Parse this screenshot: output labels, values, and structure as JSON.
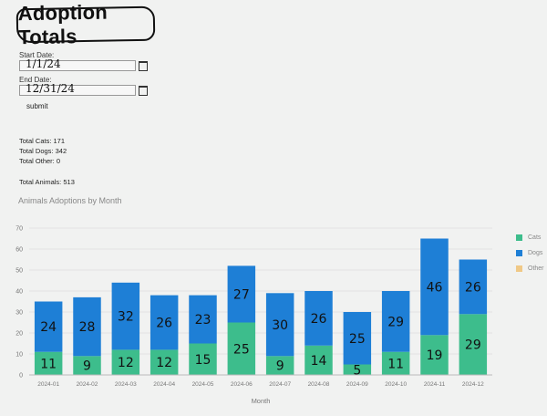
{
  "page": {
    "title": "Adoption Totals",
    "start_label": "Start Date:",
    "start_value": "1/1/24",
    "end_label": "End Date:",
    "end_value": "12/31/24",
    "submit_label": "submit"
  },
  "totals": {
    "cats": "Total Cats: 171",
    "dogs": "Total Dogs: 342",
    "other": "Total Other: 0",
    "animals": "Total Animals: 513"
  },
  "chart_data": {
    "type": "bar",
    "title": "Animals Adoptions by Month",
    "xlabel": "Month",
    "ylabel": "",
    "ylim": [
      0,
      70
    ],
    "yticks": [
      "0",
      "10",
      "20",
      "30",
      "40",
      "50",
      "60",
      "70"
    ],
    "categories": [
      "2024-01",
      "2024-02",
      "2024-03",
      "2024-04",
      "2024-05",
      "2024-06",
      "2024-07",
      "2024-08",
      "2024-09",
      "2024-10",
      "2024-11",
      "2024-12"
    ],
    "series": [
      {
        "name": "Cats",
        "color": "#3dbd8c",
        "values": [
          11,
          9,
          12,
          12,
          15,
          25,
          9,
          14,
          5,
          11,
          19,
          29
        ]
      },
      {
        "name": "Dogs",
        "color": "#1e7fd6",
        "values": [
          24,
          28,
          32,
          26,
          23,
          27,
          30,
          26,
          25,
          29,
          46,
          26
        ]
      },
      {
        "name": "Other",
        "color": "#f0c987",
        "values": [
          0,
          0,
          0,
          0,
          0,
          0,
          0,
          0,
          0,
          0,
          0,
          0
        ]
      }
    ],
    "stacked": true,
    "grid": true,
    "legend": "right"
  }
}
